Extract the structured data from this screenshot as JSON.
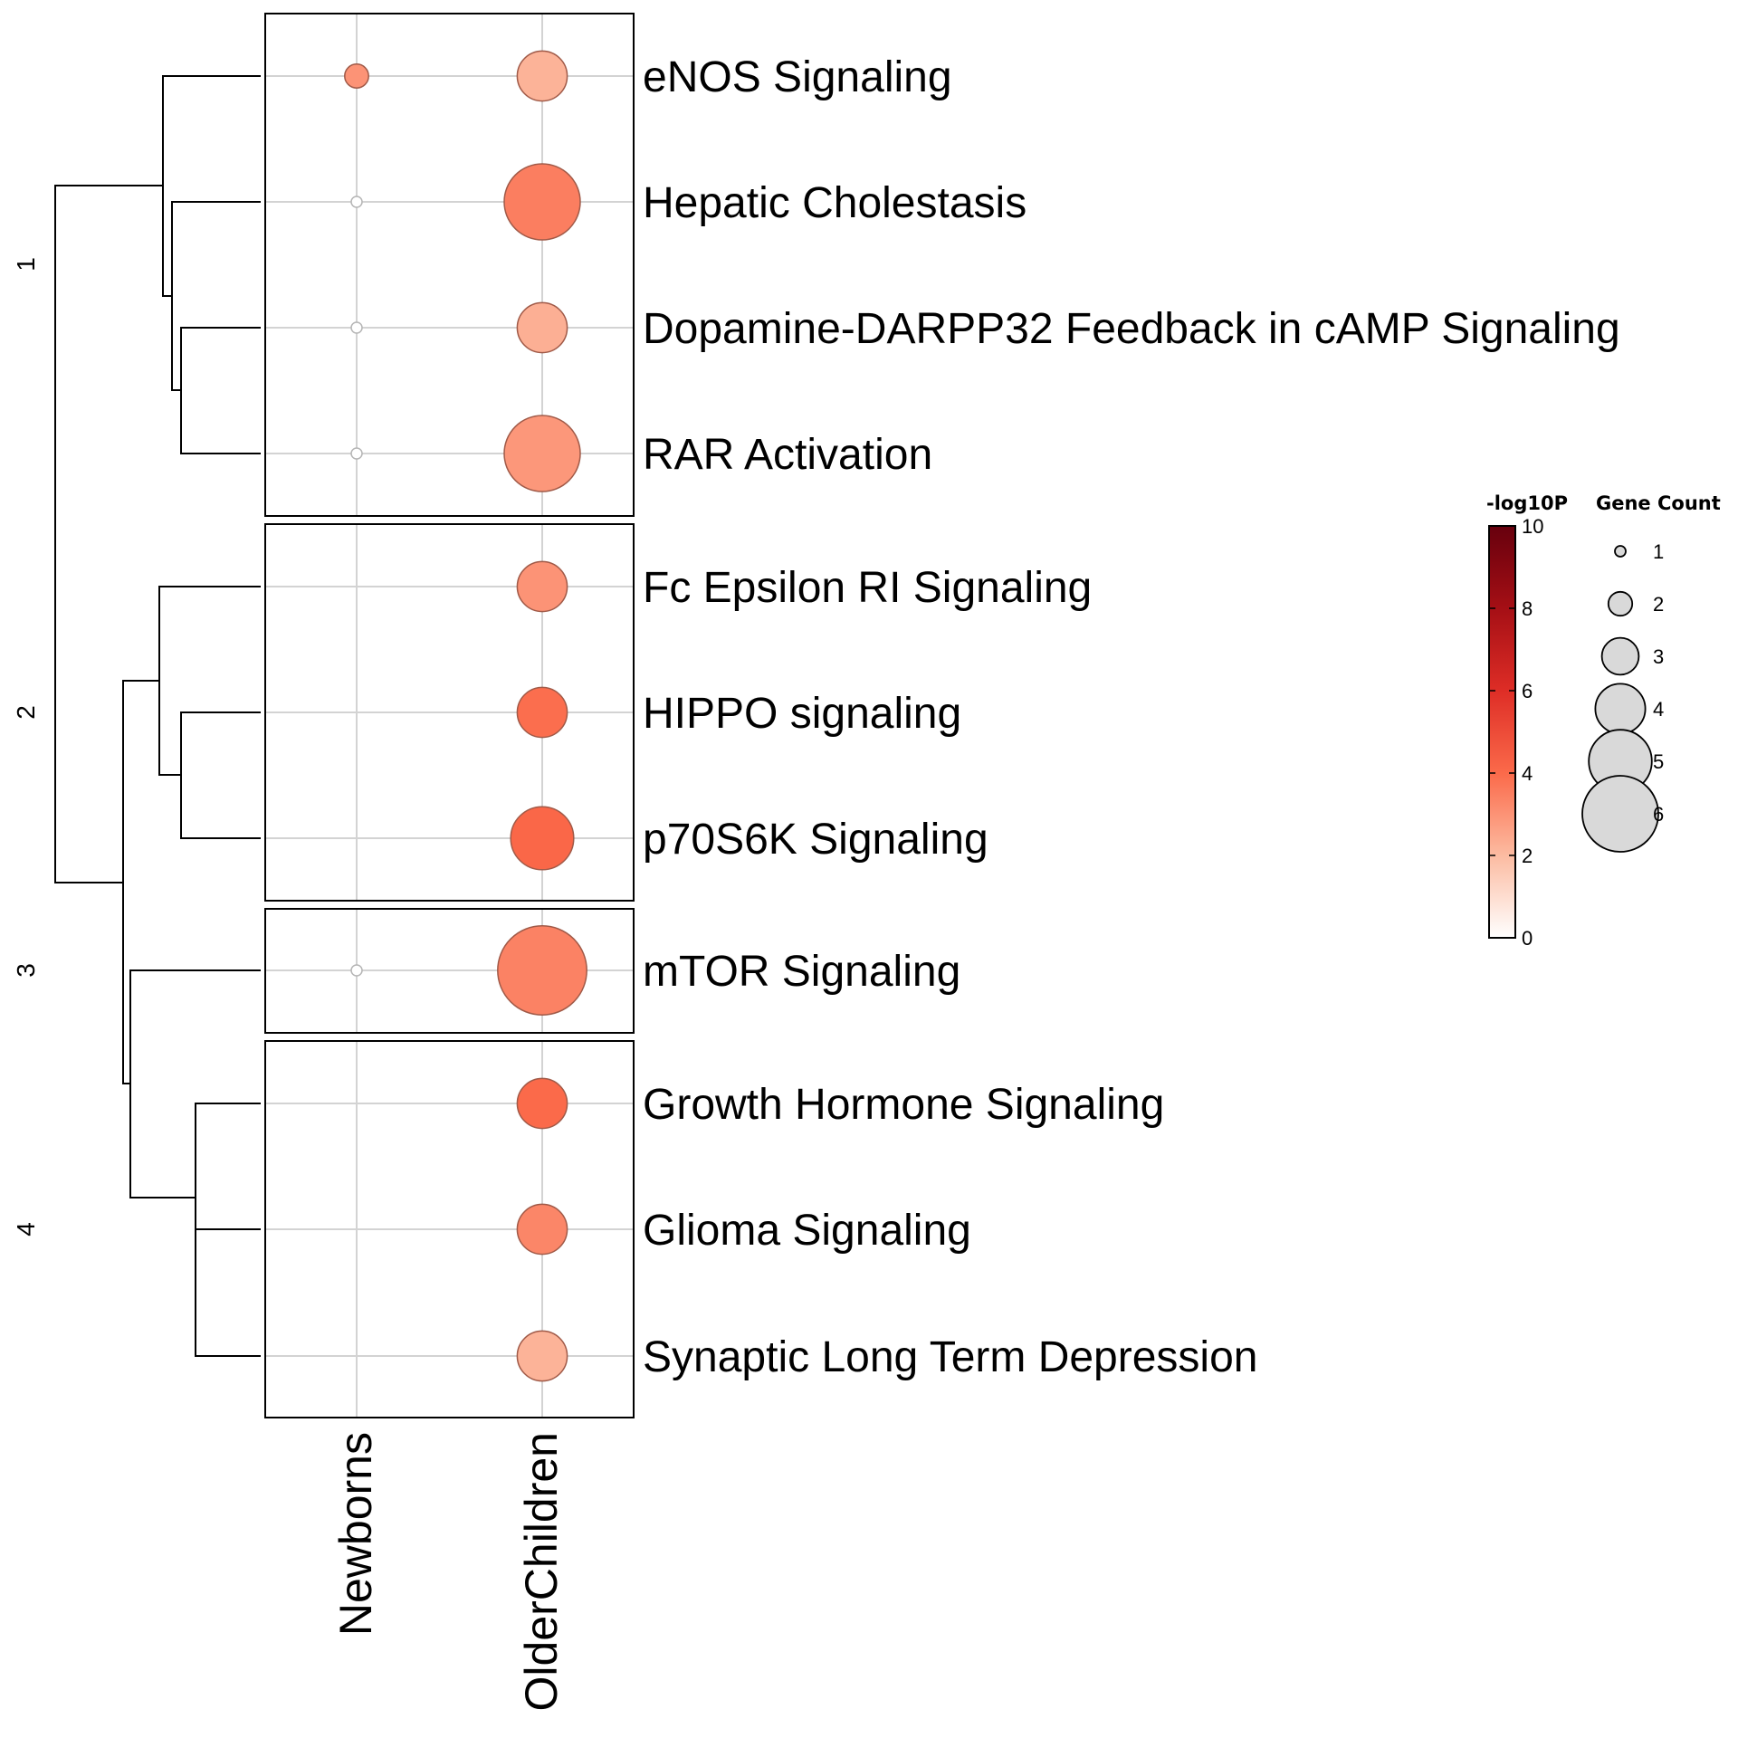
{
  "chart_data": {
    "type": "scatter",
    "subtype": "dot-plot with row dendrogram and row splits",
    "rows": [
      "eNOS Signaling",
      "Hepatic Cholestasis",
      "Dopamine-DARPP32 Feedback in cAMP Signaling",
      "RAR Activation",
      "Fc Epsilon RI Signaling",
      "HIPPO signaling",
      "p70S6K Signaling",
      "mTOR Signaling",
      "Growth Hormone Signaling",
      "Glioma Signaling",
      "Synaptic Long Term Depression"
    ],
    "row_clusters": [
      {
        "label": "1",
        "rows": [
          0,
          1,
          2,
          3
        ]
      },
      {
        "label": "2",
        "rows": [
          4,
          5,
          6
        ]
      },
      {
        "label": "3",
        "rows": [
          7
        ]
      },
      {
        "label": "4",
        "rows": [
          8,
          9,
          10
        ]
      }
    ],
    "columns": [
      "Newborns",
      "OlderChildren"
    ],
    "points": [
      {
        "row": 0,
        "col": 0,
        "gene_count": 2,
        "neglog10p": 3.0
      },
      {
        "row": 0,
        "col": 1,
        "gene_count": 4,
        "neglog10p": 2.2
      },
      {
        "row": 1,
        "col": 0,
        "gene_count": 1,
        "neglog10p": 0
      },
      {
        "row": 1,
        "col": 1,
        "gene_count": 6,
        "neglog10p": 3.5
      },
      {
        "row": 2,
        "col": 0,
        "gene_count": 1,
        "neglog10p": 0
      },
      {
        "row": 2,
        "col": 1,
        "gene_count": 4,
        "neglog10p": 2.3
      },
      {
        "row": 3,
        "col": 0,
        "gene_count": 1,
        "neglog10p": 0
      },
      {
        "row": 3,
        "col": 1,
        "gene_count": 6,
        "neglog10p": 2.9
      },
      {
        "row": 4,
        "col": 1,
        "gene_count": 4,
        "neglog10p": 3.0
      },
      {
        "row": 5,
        "col": 1,
        "gene_count": 4,
        "neglog10p": 3.9
      },
      {
        "row": 6,
        "col": 1,
        "gene_count": 5,
        "neglog10p": 4.1
      },
      {
        "row": 7,
        "col": 0,
        "gene_count": 1,
        "neglog10p": 0
      },
      {
        "row": 7,
        "col": 1,
        "gene_count": 7,
        "neglog10p": 3.4
      },
      {
        "row": 8,
        "col": 1,
        "gene_count": 4,
        "neglog10p": 4.0
      },
      {
        "row": 9,
        "col": 1,
        "gene_count": 4,
        "neglog10p": 3.3
      },
      {
        "row": 10,
        "col": 1,
        "gene_count": 4,
        "neglog10p": 2.2
      }
    ],
    "color_legend": {
      "title": "-log10P",
      "ticks": [
        0,
        2,
        4,
        6,
        8,
        10
      ],
      "range": [
        0,
        10
      ],
      "colors": [
        "#ffffff",
        "#fcbba1",
        "#fb6a4a",
        "#de2d26",
        "#a50f15",
        "#67000d"
      ]
    },
    "size_legend": {
      "title": "Gene Count",
      "values": [
        1,
        2,
        3,
        4,
        5,
        6
      ]
    },
    "grid": true,
    "legend_position": "right"
  }
}
